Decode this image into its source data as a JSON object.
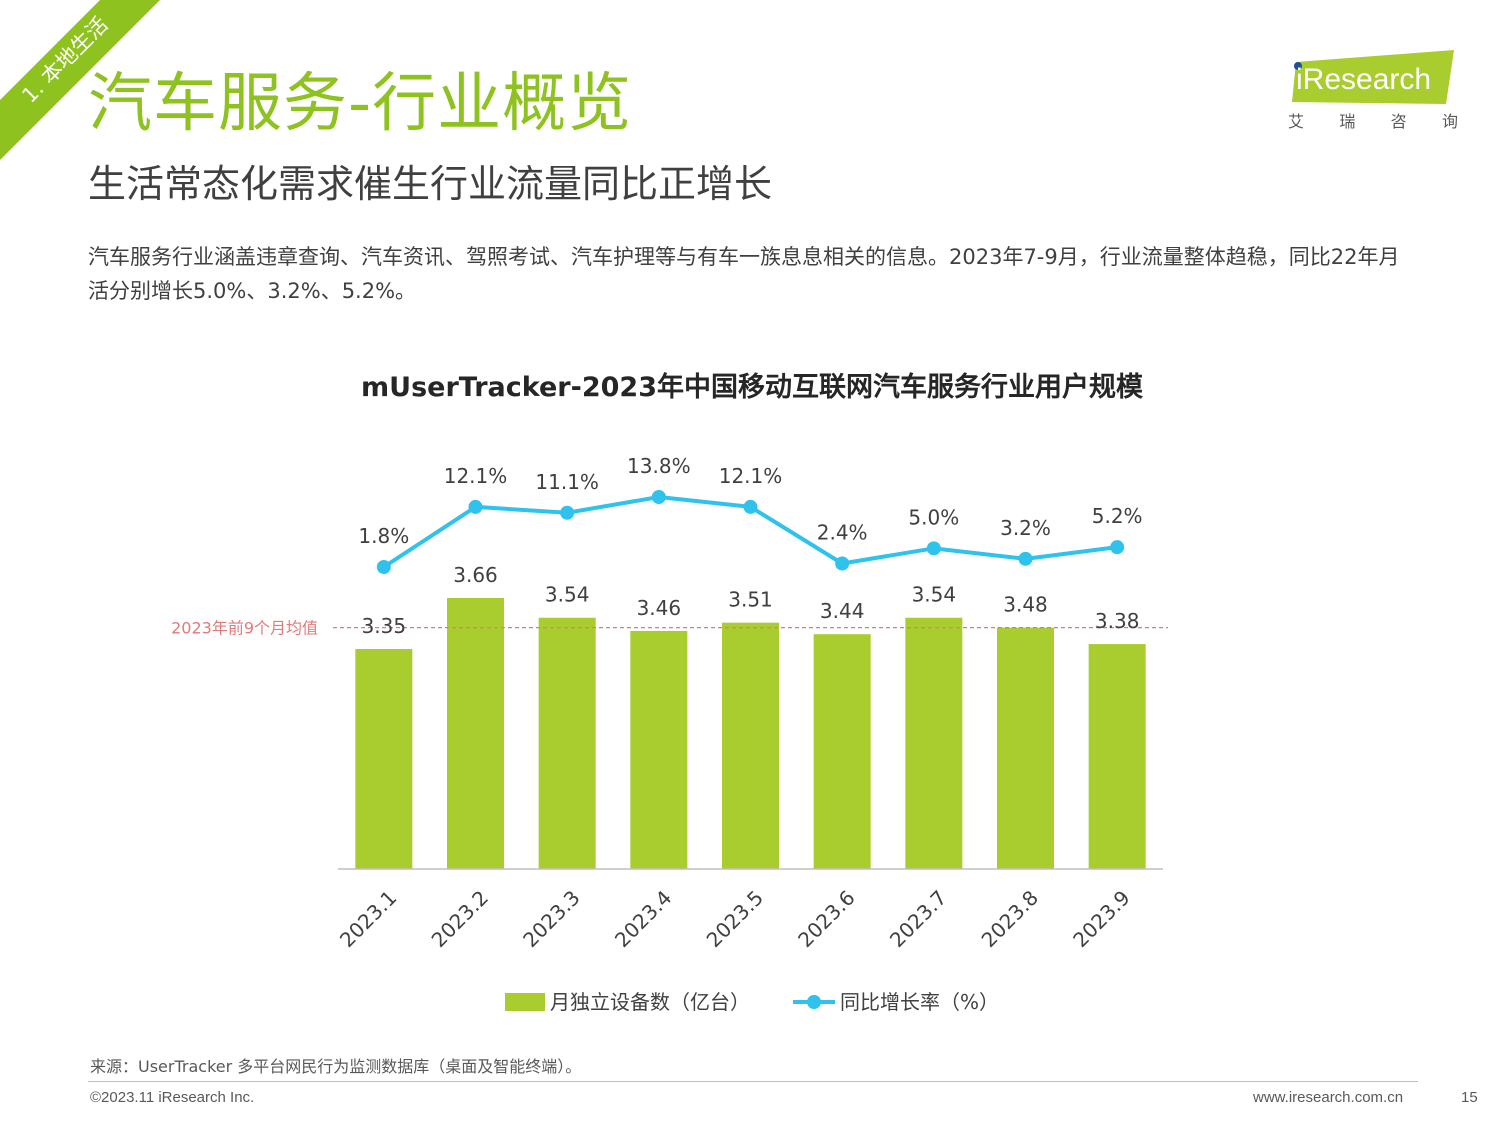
{
  "section_tag": "1. 本地生活",
  "title": "汽车服务-行业概览",
  "subtitle": "生活常态化需求催生行业流量同比正增长",
  "intro": "汽车服务行业涵盖违章查询、汽车资讯、驾照考试、汽车护理等与有车一族息息相关的信息。2023年7-9月，行业流量整体趋稳，同比22年月活分别增长5.0%、3.2%、5.2%。",
  "logo": {
    "brand": "iResearch",
    "chars": [
      "艾",
      "瑞",
      "咨",
      "询"
    ]
  },
  "colors": {
    "accent": "#8dc21f",
    "bar": "#a9cc2f",
    "line": "#2ec2ec",
    "avg_line": "#e07b7b"
  },
  "chart_data": {
    "type": "bar",
    "title": "mUserTracker-2023年中国移动互联网汽车服务行业用户规模",
    "categories": [
      "2023.1",
      "2023.2",
      "2023.3",
      "2023.4",
      "2023.5",
      "2023.6",
      "2023.7",
      "2023.8",
      "2023.9"
    ],
    "series": [
      {
        "name": "月独立设备数（亿台）",
        "type": "bar",
        "values": [
          3.35,
          3.66,
          3.54,
          3.46,
          3.51,
          3.44,
          3.54,
          3.48,
          3.38
        ],
        "labels": [
          "3.35",
          "3.66",
          "3.54",
          "3.46",
          "3.51",
          "3.44",
          "3.54",
          "3.48",
          "3.38"
        ]
      },
      {
        "name": "同比增长率（%）",
        "type": "line",
        "values": [
          1.8,
          12.1,
          11.1,
          13.8,
          12.1,
          2.4,
          5.0,
          3.2,
          5.2
        ],
        "labels": [
          "1.8%",
          "12.1%",
          "11.1%",
          "13.8%",
          "12.1%",
          "2.4%",
          "5.0%",
          "3.2%",
          "5.2%"
        ]
      }
    ],
    "reference_line": {
      "label": "2023年前9个月均值",
      "value": 3.48
    },
    "grid": false,
    "legend_position": "bottom"
  },
  "source": "来源：UserTracker 多平台网民行为监测数据库（桌面及智能终端）。",
  "copyright": "©2023.11 iResearch Inc.",
  "website": "www.iresearch.com.cn",
  "page_number": "15"
}
